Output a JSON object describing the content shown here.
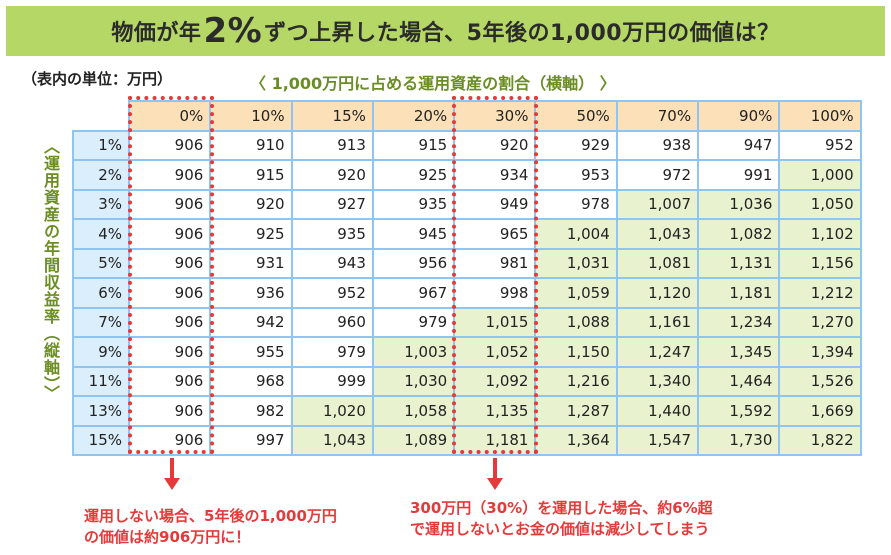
{
  "banner": {
    "prefix": "物価が年",
    "big": "2%",
    "suffix": "ずつ上昇した場合、5年後の1,000万円の価値は？"
  },
  "unit_note": "（表内の単位：万円）",
  "x_axis_title": "〈 1,000万円に占める運用資産の割合（横軸） 〉",
  "y_axis_title": "〈運用資産の年間収益率（縦軸）〉",
  "chart_data": {
    "type": "table",
    "title": "物価が年2%ずつ上昇した場合、5年後の1,000万円の価値は？",
    "xlabel": "1,000万円に占める運用資産の割合（横軸）",
    "ylabel": "運用資産の年間収益率（縦軸）",
    "unit": "万円",
    "columns": [
      "0%",
      "10%",
      "15%",
      "20%",
      "30%",
      "50%",
      "70%",
      "90%",
      "100%"
    ],
    "rows": [
      {
        "label": "1%",
        "values": [
          "906",
          "910",
          "913",
          "915",
          "920",
          "929",
          "938",
          "947",
          "952"
        ]
      },
      {
        "label": "2%",
        "values": [
          "906",
          "915",
          "920",
          "925",
          "934",
          "953",
          "972",
          "991",
          "1,000"
        ]
      },
      {
        "label": "3%",
        "values": [
          "906",
          "920",
          "927",
          "935",
          "949",
          "978",
          "1,007",
          "1,036",
          "1,050"
        ]
      },
      {
        "label": "4%",
        "values": [
          "906",
          "925",
          "935",
          "945",
          "965",
          "1,004",
          "1,043",
          "1,082",
          "1,102"
        ]
      },
      {
        "label": "5%",
        "values": [
          "906",
          "931",
          "943",
          "956",
          "981",
          "1,031",
          "1,081",
          "1,131",
          "1,156"
        ]
      },
      {
        "label": "6%",
        "values": [
          "906",
          "936",
          "952",
          "967",
          "998",
          "1,059",
          "1,120",
          "1,181",
          "1,212"
        ]
      },
      {
        "label": "7%",
        "values": [
          "906",
          "942",
          "960",
          "979",
          "1,015",
          "1,088",
          "1,161",
          "1,234",
          "1,270"
        ]
      },
      {
        "label": "9%",
        "values": [
          "906",
          "955",
          "979",
          "1,003",
          "1,052",
          "1,150",
          "1,247",
          "1,345",
          "1,394"
        ]
      },
      {
        "label": "11%",
        "values": [
          "906",
          "968",
          "999",
          "1,030",
          "1,092",
          "1,216",
          "1,340",
          "1,464",
          "1,526"
        ]
      },
      {
        "label": "13%",
        "values": [
          "906",
          "982",
          "1,020",
          "1,058",
          "1,135",
          "1,287",
          "1,440",
          "1,592",
          "1,669"
        ]
      },
      {
        "label": "15%",
        "values": [
          "906",
          "997",
          "1,043",
          "1,089",
          "1,181",
          "1,364",
          "1,547",
          "1,730",
          "1,822"
        ]
      }
    ],
    "highlight_threshold": 1000,
    "highlighted_columns": [
      "0%",
      "30%"
    ]
  },
  "colors": {
    "banner": "#b5d766",
    "header": "#fbe0b8",
    "row_header": "#dbeefb",
    "above_1000": "#e8f2cf",
    "accent_red": "#e53a3a",
    "axis_title": "#6b8e23",
    "border": "#8fc5f0"
  },
  "notes": {
    "left": [
      "運用しない場合、5年後の1,000万円",
      "の価値は約906万円に！"
    ],
    "right": [
      "300万円（30%）を運用した場合、約6%超",
      "で運用しないとお金の価値は減少してしまう"
    ]
  }
}
